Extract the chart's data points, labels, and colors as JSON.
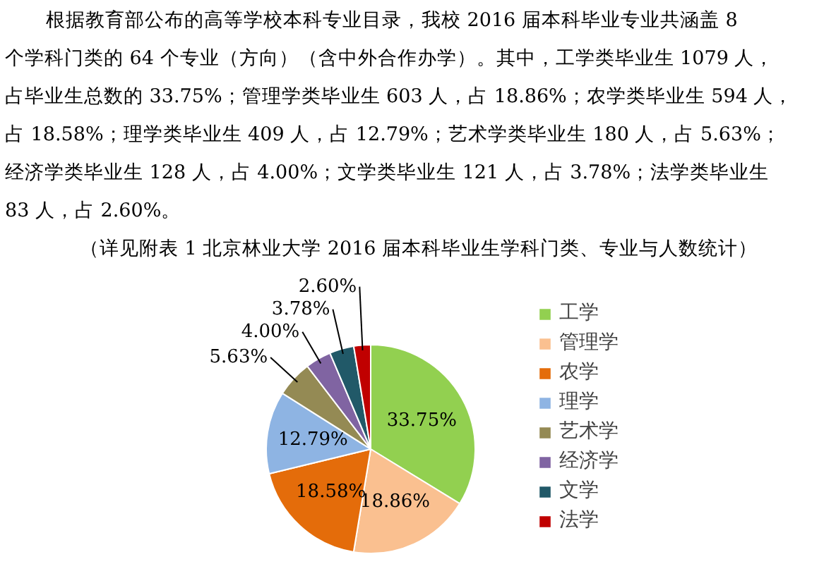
{
  "chart_data": {
    "type": "pie",
    "annotations": [
      "根据教育部公布的高等学校本科专业目录，我校 2016 届本科毕业专业共涵盖 8",
      "个学科门类的 64 个专业（方向）（含中外合作办学）。其中，工学类毕业生 1079 人，",
      "占毕业生总数的 33.75%；管理学类毕业生 603 人，占 18.86%；农学类毕业生 594 人，",
      "占 18.58%；理学类毕业生 409 人，占 12.79%；艺术学类毕业生 180 人，占 5.63%；",
      "经济学类毕业生 128 人，占 4.00%；文学类毕业生 121 人，占 3.78%；法学类毕业生",
      "83 人，占 2.60%。",
      "（详见附表 1 北京林业大学 2016 届本科毕业生学科门类、专业与人数统计）"
    ],
    "categories": [
      "工学",
      "管理学",
      "农学",
      "理学",
      "艺术学",
      "经济学",
      "文学",
      "法学"
    ],
    "values": [
      33.75,
      18.86,
      18.58,
      12.79,
      5.63,
      4.0,
      3.78,
      2.6
    ],
    "colors": [
      "#92d050",
      "#fac090",
      "#e46c0a",
      "#8eb4e3",
      "#948a54",
      "#8064a2",
      "#215968",
      "#c00000"
    ],
    "value_labels": [
      "33.75%",
      "18.86%",
      "18.58%",
      "12.79%",
      "5.63%",
      "4.00%",
      "3.78%",
      "2.60%"
    ],
    "legend": "right"
  }
}
